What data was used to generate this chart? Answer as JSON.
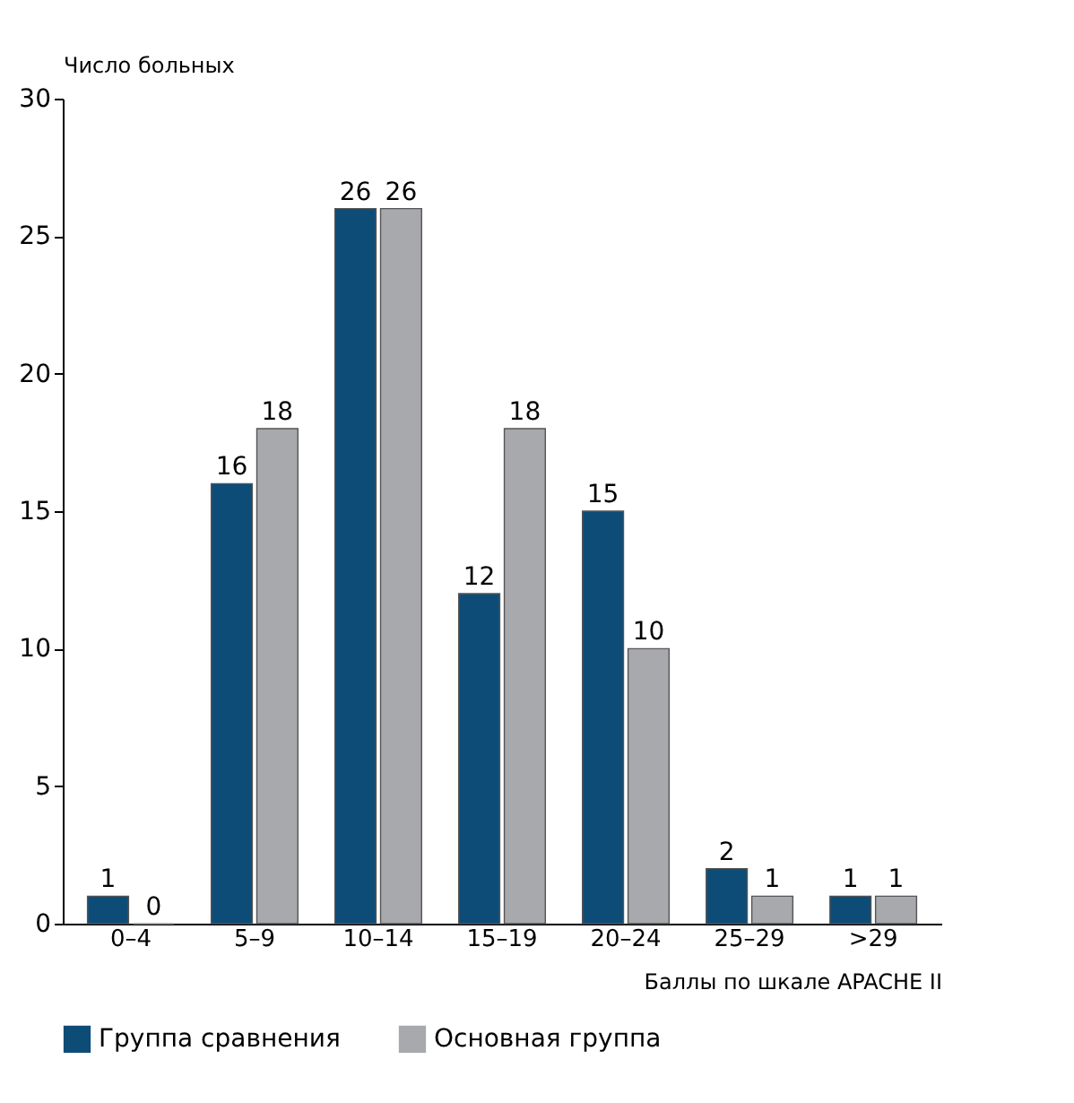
{
  "chart_data": {
    "type": "bar",
    "ylabel": "Число больных",
    "xlabel": "Баллы по шкале APACHE II",
    "categories": [
      "0–4",
      "5–9",
      "10–14",
      "15–19",
      "20–24",
      "25–29",
      ">29"
    ],
    "series": [
      {
        "name": "Группа сравнения",
        "color": "#0e4c78",
        "values": [
          1,
          16,
          26,
          12,
          15,
          2,
          1
        ]
      },
      {
        "name": "Основная группа",
        "color": "#a7a9ac",
        "values": [
          0,
          18,
          26,
          18,
          10,
          1,
          1
        ]
      }
    ],
    "ylim": [
      0,
      30
    ],
    "yticks": [
      0,
      5,
      10,
      15,
      20,
      25,
      30
    ],
    "grid": false,
    "legend": "bottom",
    "data_labels": true
  }
}
